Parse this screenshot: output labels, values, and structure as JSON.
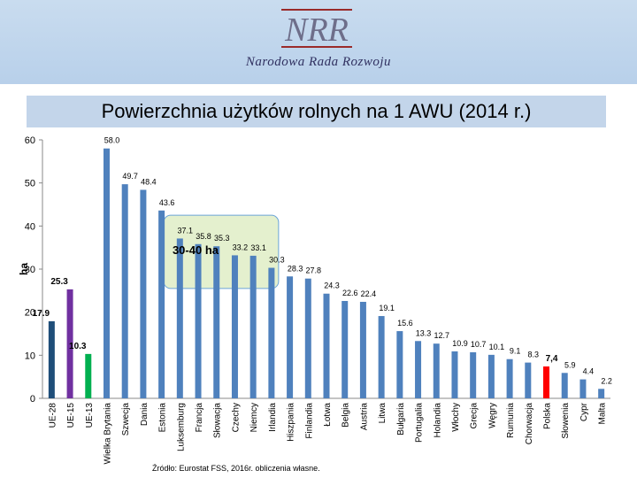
{
  "header": {
    "logo_mark": "NRR",
    "logo_text": "Narodowa Rada Rozwoju"
  },
  "title": "Powierzchnia użytków rolnych na 1 AWU (2014 r.)",
  "source": "Źródło: Eurostat FSS,  2016r. obliczenia własne.",
  "colors": {
    "default_bar": "#4f81bd",
    "ue_bar": "#1f4e79",
    "ue15_bar": "#7030a0",
    "ue13_bar": "#00b050",
    "poland_bar": "#ff0000",
    "highlight_box": "#e2efc9"
  },
  "chart_data": {
    "type": "bar",
    "title": "Powierzchnia użytków rolnych na 1 AWU (2014 r.)",
    "ylabel": "ha",
    "ylim": [
      0,
      60
    ],
    "yticks": [
      0,
      10,
      20,
      30,
      40,
      50,
      60
    ],
    "categories": [
      "UE-28",
      "UE-15",
      "UE-13",
      "Wielka Brytania",
      "Szwecja",
      "Dania",
      "Estonia",
      "Luksemburg",
      "Francja",
      "Słowacja",
      "Czechy",
      "Niemcy",
      "Irlandia",
      "Hiszpania",
      "Finlandia",
      "Łotwa",
      "Belgia",
      "Austria",
      "Litwa",
      "Bułgaria",
      "Portugalia",
      "Holandia",
      "Włochy",
      "Grecja",
      "Węgry",
      "Rumunia",
      "Chorwacja",
      "Polska",
      "Słowenia",
      "Cypr",
      "Malta"
    ],
    "values": [
      17.9,
      25.3,
      10.3,
      58.0,
      49.7,
      48.4,
      43.6,
      37.1,
      35.8,
      35.3,
      33.2,
      33.1,
      30.3,
      28.3,
      27.8,
      24.3,
      22.6,
      22.4,
      19.1,
      15.6,
      13.3,
      12.7,
      10.9,
      10.7,
      10.1,
      9.1,
      8.3,
      7.4,
      5.9,
      4.4,
      2.2
    ],
    "value_labels": [
      "17.9",
      "25.3",
      "10.3",
      "58.0",
      "49.7",
      "48.4",
      "43.6",
      "37.1",
      "35.8",
      "35.3",
      "33.2",
      "33.1",
      "30.3",
      "28.3",
      "27.8",
      "24.3",
      "22.6",
      "22.4",
      "19.1",
      "15.6",
      "13.3",
      "12.7",
      "10.9",
      "10.7",
      "10.1",
      "9.1",
      "8.3",
      "7,4",
      "5.9",
      "4.4",
      "2.2"
    ],
    "annotation": "30-40 ha",
    "grid": false,
    "legend": "none"
  }
}
